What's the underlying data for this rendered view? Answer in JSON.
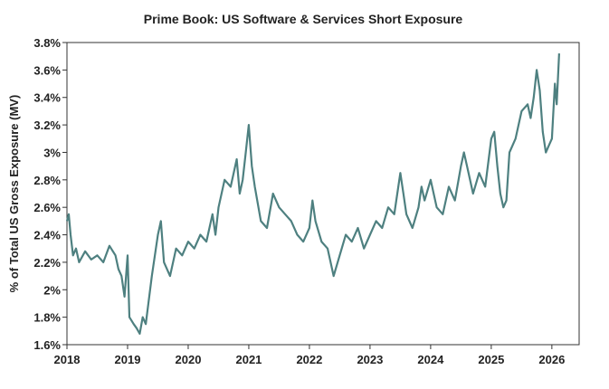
{
  "chart_data": {
    "type": "line",
    "title": "Prime Book: US Software & Services Short Exposure",
    "y_label": "% of Total US Gross Exposure (MV)",
    "xlim": [
      2018,
      2026.45
    ],
    "xticks": [
      2018,
      2019,
      2020,
      2021,
      2022,
      2023,
      2024,
      2025,
      2026
    ],
    "ylim": [
      1.6,
      3.8
    ],
    "yticks": [
      {
        "value": 1.6,
        "label": "1.6%"
      },
      {
        "value": 1.8,
        "label": "1.8%"
      },
      {
        "value": 2,
        "label": "2%"
      },
      {
        "value": 2.2,
        "label": "2.2%"
      },
      {
        "value": 2.4,
        "label": "2.4%"
      },
      {
        "value": 2.6,
        "label": "2.6%"
      },
      {
        "value": 2.8,
        "label": "2.8%"
      },
      {
        "value": 3,
        "label": "3%"
      },
      {
        "value": 3.2,
        "label": "3.2%"
      },
      {
        "value": 3.4,
        "label": "3.4%"
      },
      {
        "value": 3.6,
        "label": "3.6%"
      },
      {
        "value": 3.8,
        "label": "3.8%"
      }
    ],
    "x": [
      2018.0,
      2018.03,
      2018.06,
      2018.1,
      2018.15,
      2018.2,
      2018.3,
      2018.4,
      2018.5,
      2018.6,
      2018.7,
      2018.8,
      2018.85,
      2018.9,
      2018.95,
      2019.0,
      2019.03,
      2019.1,
      2019.15,
      2019.2,
      2019.25,
      2019.3,
      2019.4,
      2019.5,
      2019.55,
      2019.6,
      2019.7,
      2019.8,
      2019.9,
      2020.0,
      2020.1,
      2020.2,
      2020.3,
      2020.4,
      2020.45,
      2020.5,
      2020.6,
      2020.7,
      2020.8,
      2020.85,
      2020.9,
      2020.95,
      2021.0,
      2021.05,
      2021.1,
      2021.2,
      2021.3,
      2021.4,
      2021.5,
      2021.6,
      2021.7,
      2021.8,
      2021.9,
      2022.0,
      2022.05,
      2022.1,
      2022.2,
      2022.3,
      2022.4,
      2022.5,
      2022.6,
      2022.7,
      2022.8,
      2022.9,
      2023.0,
      2023.1,
      2023.2,
      2023.3,
      2023.4,
      2023.5,
      2023.55,
      2023.6,
      2023.7,
      2023.8,
      2023.85,
      2023.9,
      2024.0,
      2024.1,
      2024.2,
      2024.3,
      2024.4,
      2024.5,
      2024.55,
      2024.6,
      2024.7,
      2024.8,
      2024.9,
      2025.0,
      2025.05,
      2025.1,
      2025.15,
      2025.2,
      2025.25,
      2025.3,
      2025.4,
      2025.5,
      2025.6,
      2025.65,
      2025.7,
      2025.75,
      2025.8,
      2025.85,
      2025.9,
      2025.95,
      2026.0,
      2026.05,
      2026.08,
      2026.12
    ],
    "series": [
      {
        "color": "#4e8080",
        "values": [
          2.5,
          2.55,
          2.4,
          2.25,
          2.3,
          2.2,
          2.28,
          2.22,
          2.25,
          2.2,
          2.32,
          2.25,
          2.15,
          2.1,
          1.95,
          2.25,
          1.8,
          1.75,
          1.72,
          1.68,
          1.8,
          1.75,
          2.1,
          2.4,
          2.5,
          2.2,
          2.1,
          2.3,
          2.25,
          2.35,
          2.3,
          2.4,
          2.35,
          2.55,
          2.4,
          2.6,
          2.8,
          2.75,
          2.95,
          2.7,
          2.8,
          3.0,
          3.2,
          2.9,
          2.75,
          2.5,
          2.45,
          2.7,
          2.6,
          2.55,
          2.5,
          2.4,
          2.35,
          2.45,
          2.65,
          2.5,
          2.35,
          2.3,
          2.1,
          2.25,
          2.4,
          2.35,
          2.45,
          2.3,
          2.4,
          2.5,
          2.45,
          2.6,
          2.55,
          2.85,
          2.7,
          2.55,
          2.45,
          2.6,
          2.75,
          2.65,
          2.8,
          2.6,
          2.55,
          2.75,
          2.65,
          2.9,
          3.0,
          2.9,
          2.7,
          2.85,
          2.75,
          3.1,
          3.15,
          2.9,
          2.7,
          2.6,
          2.65,
          3.0,
          3.1,
          3.3,
          3.35,
          3.25,
          3.4,
          3.6,
          3.45,
          3.15,
          3.0,
          3.05,
          3.1,
          3.5,
          3.35,
          3.72
        ]
      }
    ]
  }
}
